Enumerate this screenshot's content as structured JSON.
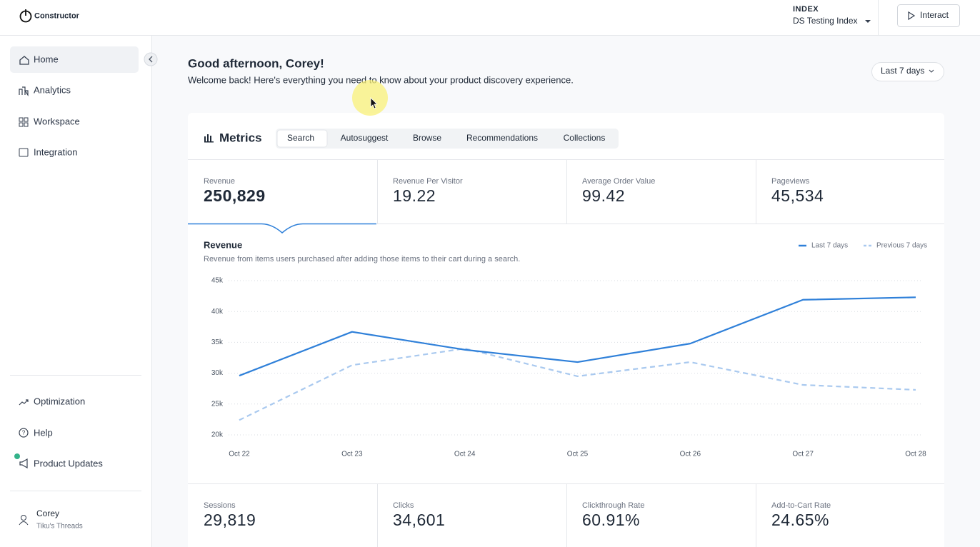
{
  "header": {
    "logo": "Constructor",
    "index_label": "INDEX",
    "index_value": "DS Testing Index",
    "interact": "Interact"
  },
  "sidebar": {
    "nav": [
      "Home",
      "Analytics",
      "Workspace",
      "Integration"
    ],
    "bottom_nav": [
      "Optimization",
      "Help",
      "Product Updates"
    ],
    "user": {
      "name": "Corey",
      "org": "Tiku's Threads"
    }
  },
  "greeting": {
    "title": "Good afternoon, Corey!",
    "subtitle": "Welcome back! Here's everything you need to know about your product discovery experience."
  },
  "date_range": "Last 7 days",
  "metrics": {
    "title": "Metrics",
    "tabs": [
      "Search",
      "Autosuggest",
      "Browse",
      "Recommendations",
      "Collections"
    ],
    "kpis": [
      {
        "label": "Revenue",
        "value": "250,829"
      },
      {
        "label": "Revenue Per Visitor",
        "value": "19.22"
      },
      {
        "label": "Average Order Value",
        "value": "99.42"
      },
      {
        "label": "Pageviews",
        "value": "45,534"
      }
    ],
    "kpis_bottom": [
      {
        "label": "Sessions",
        "value": "29,819"
      },
      {
        "label": "Clicks",
        "value": "34,601"
      },
      {
        "label": "Clickthrough Rate",
        "value": "60.91%"
      },
      {
        "label": "Add-to-Cart Rate",
        "value": "24.65%"
      }
    ]
  },
  "chart_data": {
    "type": "line",
    "title": "Revenue",
    "subtitle": "Revenue from items users purchased after adding those items to their cart during a search.",
    "categories": [
      "Oct 22",
      "Oct 23",
      "Oct 24",
      "Oct 25",
      "Oct 26",
      "Oct 27",
      "Oct 28"
    ],
    "series": [
      {
        "name": "Last 7 days",
        "color": "#2f80d9",
        "dashed": false,
        "values": [
          29600,
          36700,
          33800,
          31800,
          34800,
          41900,
          42300
        ]
      },
      {
        "name": "Previous 7 days",
        "color": "#a9c9ef",
        "dashed": true,
        "values": [
          22400,
          31300,
          34000,
          29500,
          31800,
          28100,
          27300
        ]
      }
    ],
    "ylim": [
      20000,
      45000
    ],
    "yticks": [
      {
        "value": 20000,
        "label": "20k"
      },
      {
        "value": 25000,
        "label": "25k"
      },
      {
        "value": 30000,
        "label": "30k"
      },
      {
        "value": 35000,
        "label": "35k"
      },
      {
        "value": 40000,
        "label": "40k"
      },
      {
        "value": 45000,
        "label": "45k"
      }
    ],
    "grid": true,
    "legend": "top-right"
  }
}
